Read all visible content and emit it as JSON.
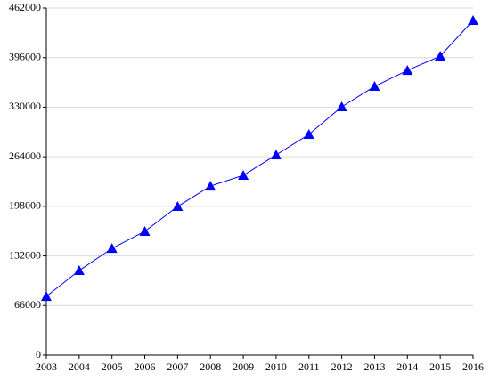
{
  "chart_data": {
    "type": "line",
    "categories": [
      "2003",
      "2004",
      "2005",
      "2006",
      "2007",
      "2008",
      "2009",
      "2010",
      "2011",
      "2012",
      "2013",
      "2014",
      "2015",
      "2016"
    ],
    "series": [
      {
        "color": "#0000ff",
        "values": [
          78000,
          112500,
          142000,
          164700,
          197800,
          225000,
          239300,
          266500,
          293800,
          330500,
          357700,
          379000,
          398000,
          445400
        ]
      }
    ],
    "ylim": [
      0,
      462000
    ],
    "yticks": [
      0,
      66000,
      132000,
      198000,
      264000,
      330000,
      396000,
      462000
    ],
    "grid": true,
    "marker": "triangle"
  }
}
